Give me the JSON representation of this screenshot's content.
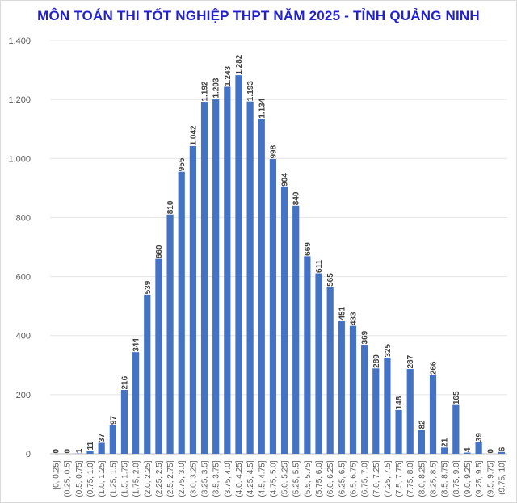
{
  "chart_data": {
    "type": "bar",
    "title": "MÔN TOÁN THI TỐT NGHIỆP THPT NĂM 2025 - TỈNH QUẢNG NINH",
    "xlabel": "",
    "ylabel": "",
    "ylim": [
      0,
      1400
    ],
    "yticks": [
      0,
      200,
      400,
      600,
      800,
      1000,
      1200,
      1400
    ],
    "ytick_labels": [
      "0",
      "200",
      "400",
      "600",
      "800",
      "1.000",
      "1.200",
      "1.400"
    ],
    "grid": true,
    "legend": "none",
    "bar_color": "#4472c4",
    "categories": [
      "[0, 0.25]",
      "(0.25, 0.5]",
      "(0.5, 0.75]",
      "(0.75, 1.0]",
      "(1.0, 1.25]",
      "(1.25, 1.5]",
      "(1.5, 1.75]",
      "(1.75, 2.0]",
      "(2.0, 2.25]",
      "(2.25, 2.5]",
      "(2.5, 2.75]",
      "(2.75, 3.0]",
      "(3.0, 3.25]",
      "(3.25, 3.5]",
      "(3.5, 3.75]",
      "(3.75, 4.0]",
      "(4.0, 4.25]",
      "(4.25, 4.5]",
      "(4.5, 4.75]",
      "(4.75, 5.0]",
      "(5.0, 5.25]",
      "(5.25, 5.5]",
      "(5.5, 5.75]",
      "(5.75, 6.0]",
      "(6.0, 6.25]",
      "(6.25, 6.5]",
      "(6.5, 6.75]",
      "(6.75, 7.0]",
      "(7.0, 7.25]",
      "(7.25, 7.5]",
      "(7.5, 7.75]",
      "(7.75, 8.0]",
      "(8.0, 8.25]",
      "(8.25, 8.5]",
      "(8.5, 8.75]",
      "(8.75, 9.0]",
      "(9.0, 9.25]",
      "(9.25, 9.5]",
      "(9.5, 9.75]",
      "(9.75, 10]"
    ],
    "values": [
      0,
      0,
      1,
      11,
      37,
      97,
      216,
      344,
      539,
      660,
      810,
      955,
      1042,
      1192,
      1203,
      1243,
      1282,
      1193,
      1134,
      998,
      904,
      840,
      669,
      611,
      565,
      451,
      433,
      369,
      289,
      325,
      148,
      287,
      82,
      266,
      21,
      165,
      4,
      39,
      0,
      6
    ],
    "value_labels": [
      "0",
      "0",
      "1",
      "11",
      "37",
      "97",
      "216",
      "344",
      "539",
      "660",
      "810",
      "955",
      "1.042",
      "1.192",
      "1.203",
      "1.243",
      "1.282",
      "1.193",
      "1.134",
      "998",
      "904",
      "840",
      "669",
      "611",
      "565",
      "451",
      "433",
      "369",
      "289",
      "325",
      "148",
      "287",
      "82",
      "266",
      "21",
      "165",
      "4",
      "39",
      "0",
      "6"
    ]
  }
}
